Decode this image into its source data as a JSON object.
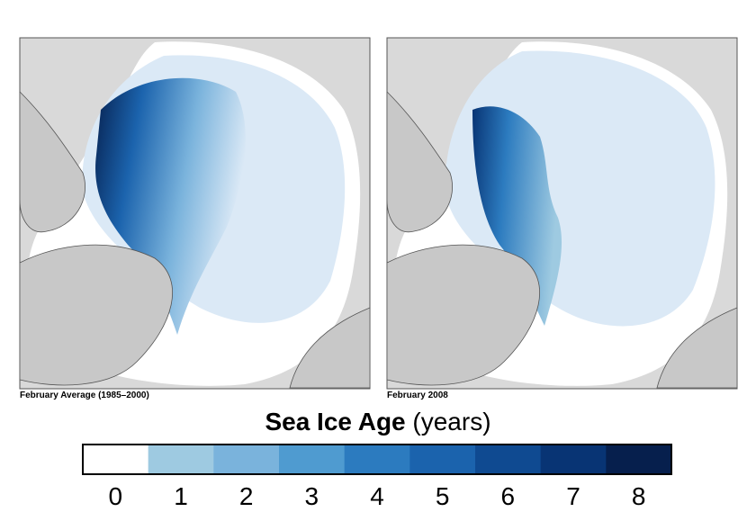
{
  "maps": [
    {
      "caption": "February Average (1985–2000)"
    },
    {
      "caption": "February 2008"
    }
  ],
  "legend": {
    "title": "Sea Ice Age",
    "unit": "(years)",
    "bins": [
      {
        "value": 0,
        "color": "#ffffff"
      },
      {
        "value": 1,
        "color": "#9ecae1"
      },
      {
        "value": 2,
        "color": "#7ab3dc"
      },
      {
        "value": 3,
        "color": "#4f9bd0"
      },
      {
        "value": 4,
        "color": "#2c7bbf"
      },
      {
        "value": 5,
        "color": "#1b63ad"
      },
      {
        "value": 6,
        "color": "#0f4a91"
      },
      {
        "value": 7,
        "color": "#083474"
      },
      {
        "value": 8,
        "color": "#061f4d"
      }
    ]
  }
}
